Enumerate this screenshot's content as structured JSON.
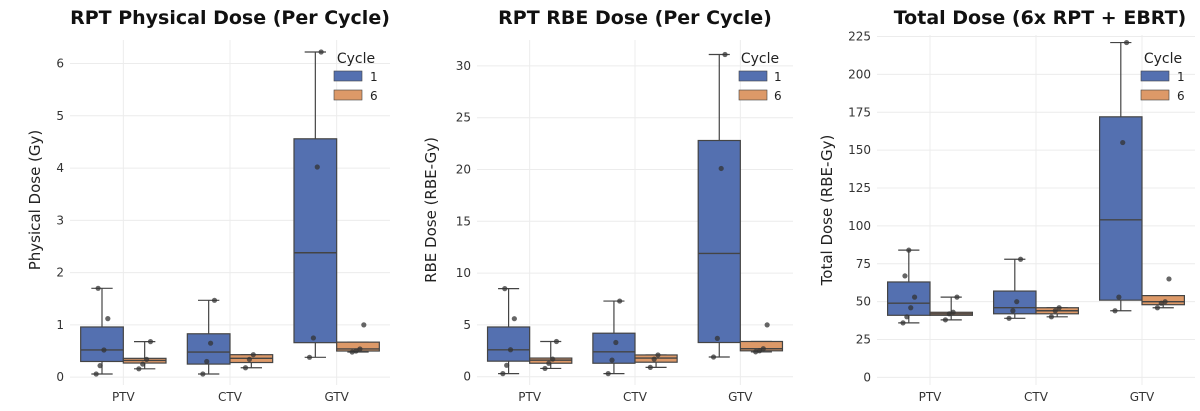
{
  "colors": {
    "cycle_1": "#5470b0",
    "cycle_6": "#dd9968",
    "line": "#444444",
    "grid": "#ececec",
    "point": "#333333"
  },
  "chart_data": [
    {
      "type": "box",
      "title": "RPT Physical Dose (Per Cycle)",
      "xlabel": "",
      "ylabel": "Physical Dose (Gy)",
      "categories": [
        "PTV",
        "CTV",
        "GTV"
      ],
      "ylim": [
        -0.15,
        6.45
      ],
      "yticks": [
        0,
        1,
        2,
        3,
        4,
        5,
        6
      ],
      "grid": true,
      "legend": {
        "title": "Cycle",
        "placement": "top-right"
      },
      "series": [
        {
          "name": "1",
          "boxes": [
            {
              "whislo": 0.06,
              "q1": 0.3,
              "med": 0.52,
              "q3": 0.96,
              "whishi": 1.7,
              "points": [
                0.06,
                0.22,
                0.52,
                1.12,
                1.7
              ]
            },
            {
              "whislo": 0.06,
              "q1": 0.25,
              "med": 0.48,
              "q3": 0.83,
              "whishi": 1.47,
              "points": [
                0.06,
                0.3,
                0.65,
                1.47
              ]
            },
            {
              "whislo": 0.38,
              "q1": 0.66,
              "med": 2.38,
              "q3": 4.56,
              "whishi": 6.22,
              "points": [
                0.38,
                0.75,
                4.02,
                6.22
              ]
            }
          ]
        },
        {
          "name": "6",
          "boxes": [
            {
              "whislo": 0.16,
              "q1": 0.27,
              "med": 0.32,
              "q3": 0.36,
              "whishi": 0.68,
              "points": [
                0.16,
                0.25,
                0.34,
                0.68
              ]
            },
            {
              "whislo": 0.18,
              "q1": 0.28,
              "med": 0.36,
              "q3": 0.43,
              "whishi": 0.43,
              "points": [
                0.18,
                0.34,
                0.43
              ]
            },
            {
              "whislo": 0.48,
              "q1": 0.5,
              "med": 0.54,
              "q3": 0.67,
              "whishi": 0.67,
              "points": [
                0.48,
                0.5,
                0.54,
                1.0
              ]
            }
          ]
        }
      ]
    },
    {
      "type": "box",
      "title": "RPT RBE Dose (Per Cycle)",
      "xlabel": "",
      "ylabel": "RBE Dose (RBE-Gy)",
      "categories": [
        "PTV",
        "CTV",
        "GTV"
      ],
      "ylim": [
        -0.8,
        32.5
      ],
      "yticks": [
        0,
        5,
        10,
        15,
        20,
        25,
        30
      ],
      "grid": true,
      "legend": {
        "title": "Cycle",
        "placement": "top-right"
      },
      "series": [
        {
          "name": "1",
          "boxes": [
            {
              "whislo": 0.3,
              "q1": 1.5,
              "med": 2.6,
              "q3": 4.8,
              "whishi": 8.5,
              "points": [
                0.3,
                1.1,
                2.6,
                5.6,
                8.5
              ]
            },
            {
              "whislo": 0.3,
              "q1": 1.3,
              "med": 2.4,
              "q3": 4.2,
              "whishi": 7.3,
              "points": [
                0.3,
                1.6,
                3.3,
                7.3
              ]
            },
            {
              "whislo": 1.9,
              "q1": 3.3,
              "med": 11.9,
              "q3": 22.8,
              "whishi": 31.1,
              "points": [
                1.9,
                3.7,
                20.1,
                31.1
              ]
            }
          ]
        },
        {
          "name": "6",
          "boxes": [
            {
              "whislo": 0.8,
              "q1": 1.3,
              "med": 1.6,
              "q3": 1.8,
              "whishi": 3.4,
              "points": [
                0.8,
                1.3,
                1.7,
                3.4
              ]
            },
            {
              "whislo": 0.9,
              "q1": 1.4,
              "med": 1.8,
              "q3": 2.1,
              "whishi": 2.1,
              "points": [
                0.9,
                1.7,
                2.1
              ]
            },
            {
              "whislo": 2.4,
              "q1": 2.5,
              "med": 2.7,
              "q3": 3.4,
              "whishi": 3.4,
              "points": [
                2.4,
                2.5,
                2.7,
                5.0
              ]
            }
          ]
        }
      ]
    },
    {
      "type": "box",
      "title": "Total Dose (6x RPT + EBRT)",
      "xlabel": "",
      "ylabel": "Total Dose (RBE-Gy)",
      "categories": [
        "PTV",
        "CTV",
        "GTV"
      ],
      "ylim": [
        -5,
        226
      ],
      "yticks": [
        0,
        25,
        50,
        75,
        100,
        125,
        150,
        175,
        200,
        225
      ],
      "grid": true,
      "legend": {
        "title": "Cycle",
        "placement": "top-right"
      },
      "series": [
        {
          "name": "1",
          "boxes": [
            {
              "whislo": 36,
              "q1": 41,
              "med": 49,
              "q3": 63,
              "whishi": 84,
              "points": [
                36,
                40,
                46,
                53,
                67,
                84
              ]
            },
            {
              "whislo": 39,
              "q1": 42,
              "med": 46,
              "q3": 57,
              "whishi": 78,
              "points": [
                39,
                44,
                50,
                78
              ]
            },
            {
              "whislo": 44,
              "q1": 51,
              "med": 104,
              "q3": 172,
              "whishi": 221,
              "points": [
                44,
                53,
                155,
                221
              ]
            }
          ]
        },
        {
          "name": "6",
          "boxes": [
            {
              "whislo": 38,
              "q1": 41,
              "med": 42,
              "q3": 43,
              "whishi": 53,
              "points": [
                38,
                42,
                43,
                53
              ]
            },
            {
              "whislo": 40,
              "q1": 42,
              "med": 44,
              "q3": 46,
              "whishi": 46,
              "points": [
                40,
                44,
                46
              ]
            },
            {
              "whislo": 46,
              "q1": 48,
              "med": 50,
              "q3": 54,
              "whishi": 54,
              "points": [
                46,
                49,
                50,
                65
              ]
            }
          ]
        }
      ]
    }
  ]
}
